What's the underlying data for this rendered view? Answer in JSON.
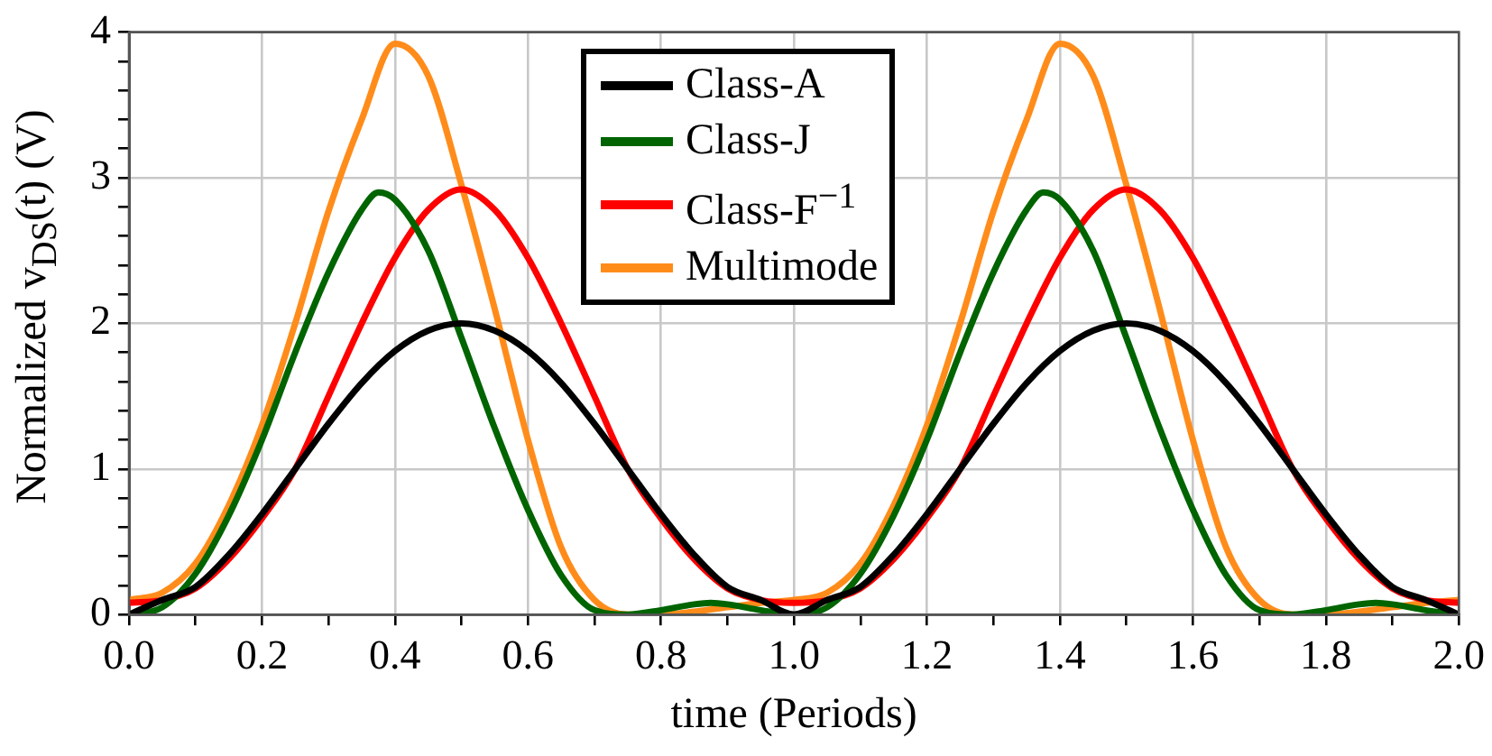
{
  "chart_data": {
    "type": "line",
    "xlabel": "time (Periods)",
    "ylabel": "Normalized v$_{DS}$(t) (V)",
    "xlim": [
      0,
      2
    ],
    "ylim": [
      0,
      4
    ],
    "xticks": [
      {
        "value": 0,
        "label": "0.0"
      },
      {
        "value": 0.1,
        "label": null
      },
      {
        "value": 0.2,
        "label": "0.2"
      },
      {
        "value": 0.3,
        "label": null
      },
      {
        "value": 0.4,
        "label": "0.4"
      },
      {
        "value": 0.5,
        "label": null
      },
      {
        "value": 0.6,
        "label": "0.6"
      },
      {
        "value": 0.7,
        "label": null
      },
      {
        "value": 0.8,
        "label": "0.8"
      },
      {
        "value": 0.9,
        "label": null
      },
      {
        "value": 1,
        "label": "1.0"
      },
      {
        "value": 1.1,
        "label": null
      },
      {
        "value": 1.2,
        "label": "1.2"
      },
      {
        "value": 1.3,
        "label": null
      },
      {
        "value": 1.4,
        "label": "1.4"
      },
      {
        "value": 1.5,
        "label": null
      },
      {
        "value": 1.6,
        "label": "1.6"
      },
      {
        "value": 1.7,
        "label": null
      },
      {
        "value": 1.8,
        "label": "1.8"
      },
      {
        "value": 1.9,
        "label": null
      },
      {
        "value": 2,
        "label": "2.0"
      }
    ],
    "yticks": [
      0,
      {
        "value": 0.2,
        "label": null
      },
      {
        "value": 0.4,
        "label": null
      },
      {
        "value": 0.6,
        "label": null
      },
      {
        "value": 0.8,
        "label": null
      },
      1,
      {
        "value": 1.2,
        "label": null
      },
      {
        "value": 1.4,
        "label": null
      },
      {
        "value": 1.6,
        "label": null
      },
      {
        "value": 1.8,
        "label": null
      },
      2,
      {
        "value": 2.2,
        "label": null
      },
      {
        "value": 2.4,
        "label": null
      },
      {
        "value": 2.6,
        "label": null
      },
      {
        "value": 2.8,
        "label": null
      },
      3,
      {
        "value": 3.2,
        "label": null
      },
      {
        "value": 3.4,
        "label": null
      },
      {
        "value": 3.6,
        "label": null
      },
      {
        "value": 3.8,
        "label": null
      },
      4
    ],
    "grid": true,
    "legend": "top",
    "marker": "none",
    "line_style": "solid",
    "series": [
      {
        "name": "Class-A",
        "color": "#000000",
        "x": [
          0,
          0.05,
          0.1,
          0.15,
          0.2,
          0.25,
          0.3,
          0.35,
          0.4,
          0.45,
          0.5,
          0.55,
          0.6,
          0.65,
          0.7,
          0.75,
          0.8,
          0.85,
          0.9,
          0.95,
          1,
          1.05,
          1.1,
          1.15,
          1.2,
          1.25,
          1.3,
          1.35,
          1.4,
          1.45,
          1.5,
          1.55,
          1.6,
          1.65,
          1.7,
          1.75,
          1.8,
          1.85,
          1.9,
          1.95,
          2
        ],
        "values": [
          0,
          0.1,
          0.19,
          0.41,
          0.69,
          1,
          1.31,
          1.59,
          1.81,
          1.95,
          2,
          1.95,
          1.81,
          1.59,
          1.31,
          1,
          0.69,
          0.41,
          0.19,
          0.1,
          0,
          0.1,
          0.19,
          0.41,
          0.69,
          1,
          1.31,
          1.59,
          1.81,
          1.95,
          2,
          1.95,
          1.81,
          1.59,
          1.31,
          1,
          0.69,
          0.41,
          0.19,
          0.1,
          0
        ]
      },
      {
        "name": "Class-J",
        "color": "#006400",
        "x": [
          0,
          0.05,
          0.1,
          0.15,
          0.2,
          0.25,
          0.3,
          0.35,
          0.375,
          0.4,
          0.45,
          0.5,
          0.55,
          0.6,
          0.65,
          0.7,
          0.75,
          0.8,
          0.85,
          0.875,
          0.9,
          0.95,
          1,
          1.05,
          1.1,
          1.15,
          1.2,
          1.25,
          1.3,
          1.35,
          1.375,
          1.4,
          1.45,
          1.5,
          1.55,
          1.6,
          1.65,
          1.7,
          1.75,
          1.8,
          1.85,
          1.875,
          1.9,
          1.95,
          2
        ],
        "values": [
          0,
          0.05,
          0.28,
          0.68,
          1.2,
          1.8,
          2.35,
          2.78,
          2.9,
          2.85,
          2.5,
          1.9,
          1.28,
          0.72,
          0.27,
          0.03,
          0,
          0.03,
          0.07,
          0.08,
          0.07,
          0.03,
          0,
          0.05,
          0.28,
          0.68,
          1.2,
          1.8,
          2.35,
          2.78,
          2.9,
          2.85,
          2.5,
          1.9,
          1.28,
          0.72,
          0.27,
          0.03,
          0,
          0.03,
          0.07,
          0.08,
          0.07,
          0.03,
          0
        ]
      },
      {
        "name": "Class-F$^{−1}$",
        "color": "#ff0000",
        "x": [
          0,
          0.05,
          0.1,
          0.15,
          0.2,
          0.25,
          0.3,
          0.35,
          0.4,
          0.45,
          0.5,
          0.55,
          0.6,
          0.65,
          0.7,
          0.75,
          0.8,
          0.85,
          0.9,
          0.95,
          1,
          1.05,
          1.1,
          1.15,
          1.2,
          1.25,
          1.3,
          1.35,
          1.4,
          1.45,
          1.5,
          1.55,
          1.6,
          1.65,
          1.7,
          1.75,
          1.8,
          1.85,
          1.9,
          1.95,
          2
        ],
        "values": [
          0.08,
          0.1,
          0.18,
          0.38,
          0.66,
          1,
          1.5,
          2,
          2.45,
          2.78,
          2.92,
          2.78,
          2.45,
          2,
          1.5,
          1,
          0.66,
          0.38,
          0.18,
          0.1,
          0.08,
          0.1,
          0.18,
          0.38,
          0.66,
          1,
          1.5,
          2,
          2.45,
          2.78,
          2.92,
          2.78,
          2.45,
          2,
          1.5,
          1,
          0.66,
          0.38,
          0.18,
          0.1,
          0.08
        ]
      },
      {
        "name": "Multimode",
        "color": "#ff8c1a",
        "x": [
          0,
          0.05,
          0.1,
          0.15,
          0.2,
          0.25,
          0.3,
          0.35,
          0.4,
          0.45,
          0.5,
          0.55,
          0.6,
          0.65,
          0.7,
          0.75,
          0.8,
          0.85,
          0.9,
          0.95,
          1,
          1.05,
          1.1,
          1.15,
          1.2,
          1.25,
          1.3,
          1.35,
          1.4,
          1.45,
          1.5,
          1.55,
          1.6,
          1.65,
          1.7,
          1.75,
          1.8,
          1.85,
          1.9,
          1.95,
          2
        ],
        "values": [
          0.1,
          0.15,
          0.35,
          0.75,
          1.3,
          2,
          2.77,
          3.4,
          3.92,
          3.7,
          2.95,
          2.1,
          1.2,
          0.46,
          0.1,
          0,
          0,
          0.02,
          0.05,
          0.08,
          0.1,
          0.15,
          0.35,
          0.75,
          1.3,
          2,
          2.77,
          3.4,
          3.92,
          3.7,
          2.95,
          2.1,
          1.2,
          0.46,
          0.1,
          0,
          0,
          0.02,
          0.05,
          0.08,
          0.1
        ]
      }
    ]
  }
}
